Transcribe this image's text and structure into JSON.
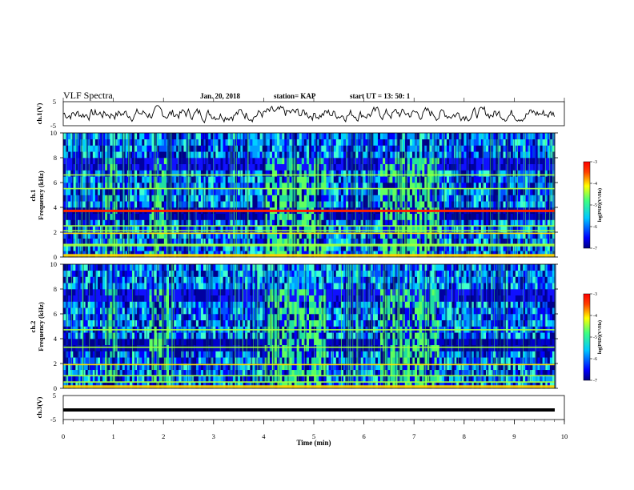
{
  "chart_data": {
    "type": "heatmap",
    "title": "VLF Spectra",
    "date": "Jan. 20, 2018",
    "station": "station= KAP",
    "start": "start  UT =  13: 50: 1",
    "xlabel": "Time (min)",
    "xlim": [
      0,
      10
    ],
    "x_ticks": [
      "0",
      "1",
      "2",
      "3",
      "4",
      "5",
      "6",
      "7",
      "8",
      "9",
      "10"
    ],
    "panels": [
      {
        "id": "ch1_waveform",
        "ylabel": "ch.1(V)",
        "y_ticks": [
          "5",
          "-5"
        ],
        "ylim": [
          -5,
          5
        ],
        "trace_color": "#000000"
      },
      {
        "id": "ch1_spectrogram",
        "ylabel_channel": "ch.1",
        "ylabel": "Frequency (kHz)",
        "y_ticks": [
          "0",
          "2",
          "4",
          "6",
          "8",
          "10"
        ],
        "ylim": [
          0,
          10
        ],
        "colorbar": {
          "label": "log(PSD)(V²/Hz)",
          "ticks": [
            "-3",
            "-4",
            "-5",
            "-6",
            "-7"
          ],
          "range": [
            -7,
            -3
          ]
        },
        "persistent_lines_khz": [
          0.1,
          0.9,
          1.0,
          1.9,
          2.1,
          2.5,
          3.75,
          5.5,
          6.6
        ],
        "burst_intervals_min": [
          [
            0.8,
            1.05
          ],
          [
            1.7,
            2.1
          ],
          [
            4.0,
            4.8
          ],
          [
            4.8,
            5.2
          ],
          [
            6.3,
            7.5
          ]
        ]
      },
      {
        "id": "ch2_spectrogram",
        "ylabel_channel": "ch.2",
        "ylabel": "Frequency (kHz)",
        "y_ticks": [
          "0",
          "2",
          "4",
          "6",
          "8",
          "10"
        ],
        "ylim": [
          0,
          10
        ],
        "colorbar": {
          "label": "log(PSD)(V²/Hz)",
          "ticks": [
            "-3",
            "-4",
            "-5",
            "-6",
            "-7"
          ],
          "range": [
            -7,
            -3
          ]
        },
        "persistent_lines_khz": [
          0.1,
          0.5,
          1.0,
          1.9,
          3.3,
          4.7
        ],
        "burst_intervals_min": [
          [
            0.8,
            1.05
          ],
          [
            1.7,
            2.1
          ],
          [
            4.0,
            4.8
          ],
          [
            4.8,
            5.2
          ],
          [
            6.3,
            7.5
          ]
        ]
      },
      {
        "id": "ch3_waveform",
        "ylabel": "ch.3(V)",
        "y_ticks": [
          "5",
          "-5"
        ],
        "ylim": [
          -5,
          5
        ],
        "constant_value_v": -1,
        "trace_color": "#000000"
      }
    ]
  }
}
